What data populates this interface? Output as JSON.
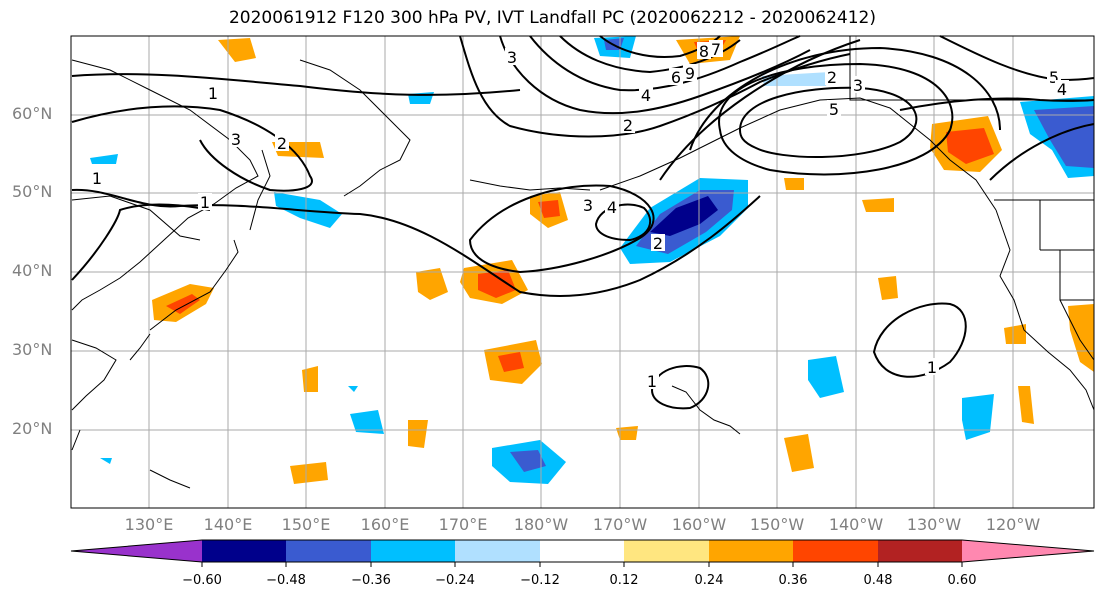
{
  "title": "2020061912 F120 300 hPa PV, IVT Landfall PC (2020062212 - 2020062412)",
  "lat_labels": [
    "60°N",
    "50°N",
    "40°N",
    "30°N",
    "20°N"
  ],
  "lon_labels": [
    "130°E",
    "140°E",
    "150°E",
    "160°E",
    "170°E",
    "180°W",
    "170°W",
    "160°W",
    "150°W",
    "140°W",
    "130°W",
    "120°W"
  ],
  "colorbar": {
    "colors": [
      "#9932CC",
      "#00008B",
      "#3A5BD0",
      "#00BFFF",
      "#B0E0FF",
      "#FFFFFF",
      "#FFE680",
      "#FFA500",
      "#FF4500",
      "#B22222",
      "#FF88B0"
    ],
    "tick_labels": [
      "−0.60",
      "−0.48",
      "−0.36",
      "−0.24",
      "−0.12",
      "0.12",
      "0.24",
      "0.36",
      "0.48",
      "0.60"
    ]
  },
  "contour_labels": [
    "1",
    "3",
    "2",
    "1",
    "1",
    "3",
    "4",
    "2",
    "3",
    "8",
    "7",
    "9",
    "6",
    "4",
    "2",
    "2",
    "3",
    "5",
    "5",
    "4",
    "1",
    "1"
  ],
  "colors": {
    "land_line": "#000000",
    "grid": "#aaaaaa"
  }
}
